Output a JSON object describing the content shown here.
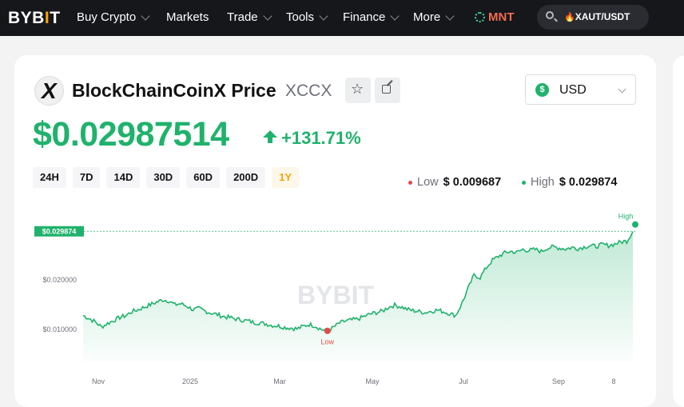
{
  "nav": {
    "logo_text": "BYB",
    "logo_bar": "I",
    "logo_end": "T",
    "items": [
      {
        "label": "Buy Crypto",
        "dropdown": true
      },
      {
        "label": "Markets",
        "dropdown": false
      },
      {
        "label": "Trade",
        "dropdown": true
      },
      {
        "label": "Tools",
        "dropdown": true
      },
      {
        "label": "Finance",
        "dropdown": true
      },
      {
        "label": "More",
        "dropdown": true
      }
    ],
    "promo": "MNT",
    "search_value": "XAUT/USDT"
  },
  "coin": {
    "name": "BlockChainCoinX Price",
    "symbol": "XCCX",
    "logo_letter": "X",
    "price": "$0.02987514",
    "change": "+131.71%",
    "currency": "USD",
    "currency_icon": "$"
  },
  "ranges": [
    "24H",
    "7D",
    "14D",
    "30D",
    "60D",
    "200D",
    "1Y"
  ],
  "active_range": "1Y",
  "low_label": "Low",
  "low_value": "$ 0.009687",
  "high_label": "High",
  "high_value": "$ 0.029874",
  "colors": {
    "up": "#20b26c",
    "low": "#e04b4b",
    "accent": "#f7a600"
  },
  "chart_data": {
    "type": "area",
    "x_ticks": [
      "Nov",
      "2025",
      "Mar",
      "May",
      "Jul",
      "Sep",
      "8"
    ],
    "y_ticks": [
      "$0.010000",
      "$0.020000"
    ],
    "current_price_label": "$0.029874",
    "high_marker_label": "High",
    "low_marker_label": "Low",
    "watermark": "BYBIT",
    "ylim": [
      0.0035,
      0.033
    ],
    "series": [
      {
        "values": [
          0.0128,
          0.0122,
          0.0115,
          0.0105,
          0.0112,
          0.0118,
          0.0124,
          0.0128,
          0.0136,
          0.014,
          0.0145,
          0.015,
          0.0155,
          0.016,
          0.0158,
          0.015,
          0.0152,
          0.0147,
          0.014,
          0.0142,
          0.0137,
          0.0133,
          0.013,
          0.0126,
          0.0124,
          0.0121,
          0.0119,
          0.0117,
          0.0114,
          0.0113,
          0.0111,
          0.0108,
          0.0107,
          0.0104,
          0.0103,
          0.0101,
          0.0106,
          0.011,
          0.0107,
          0.01,
          0.0097,
          0.0104,
          0.0113,
          0.0117,
          0.0119,
          0.0121,
          0.0126,
          0.0131,
          0.0134,
          0.0137,
          0.0145,
          0.0149,
          0.0146,
          0.0141,
          0.0138,
          0.0136,
          0.0134,
          0.0137,
          0.0139,
          0.0136,
          0.0132,
          0.0128,
          0.0152,
          0.0182,
          0.021,
          0.0205,
          0.0225,
          0.024,
          0.0248,
          0.0255,
          0.0258,
          0.0256,
          0.0262,
          0.026,
          0.0262,
          0.0258,
          0.0265,
          0.0267,
          0.0265,
          0.0263,
          0.0266,
          0.0264,
          0.0267,
          0.027,
          0.0268,
          0.0272,
          0.027,
          0.0273,
          0.0277,
          0.0279,
          0.0298
        ]
      }
    ]
  }
}
